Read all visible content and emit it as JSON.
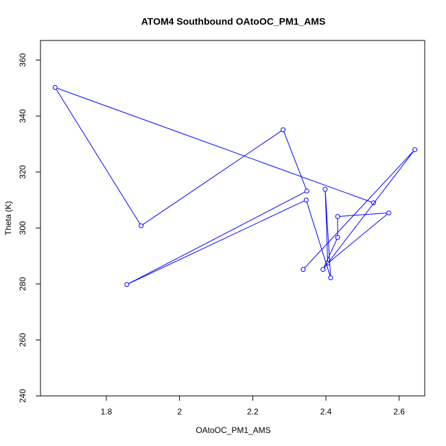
{
  "chart_data": {
    "type": "line",
    "title": "ATOM4 Southbound OAtoOC_PM1_AMS",
    "xlabel": "OAtoOC_PM1_AMS",
    "ylabel": "Theta (K)",
    "xlim": [
      1.62,
      2.67
    ],
    "ylim": [
      240,
      367
    ],
    "xticks": [
      1.8,
      2.0,
      2.2,
      2.4,
      2.6
    ],
    "yticks": [
      240,
      260,
      280,
      300,
      320,
      340,
      360
    ],
    "grid": false,
    "legend": "none",
    "series_color": "#0000ff",
    "series": [
      {
        "points": [
          {
            "x": 2.53,
            "y": 309.0
          },
          {
            "x": 1.66,
            "y": 350.2
          },
          {
            "x": 1.895,
            "y": 300.8
          },
          {
            "x": 2.283,
            "y": 335.1
          },
          {
            "x": 2.348,
            "y": 313.2
          },
          {
            "x": 1.856,
            "y": 279.8
          },
          {
            "x": 2.346,
            "y": 310.0
          },
          {
            "x": 2.413,
            "y": 282.2
          },
          {
            "x": 2.398,
            "y": 313.8
          },
          {
            "x": 2.405,
            "y": 287.4
          },
          {
            "x": 2.572,
            "y": 305.4
          },
          {
            "x": 2.432,
            "y": 304.1
          },
          {
            "x": 2.432,
            "y": 296.6
          },
          {
            "x": 2.392,
            "y": 285.2
          },
          {
            "x": 2.643,
            "y": 328.0
          },
          {
            "x": 2.338,
            "y": 285.2
          }
        ]
      }
    ]
  }
}
